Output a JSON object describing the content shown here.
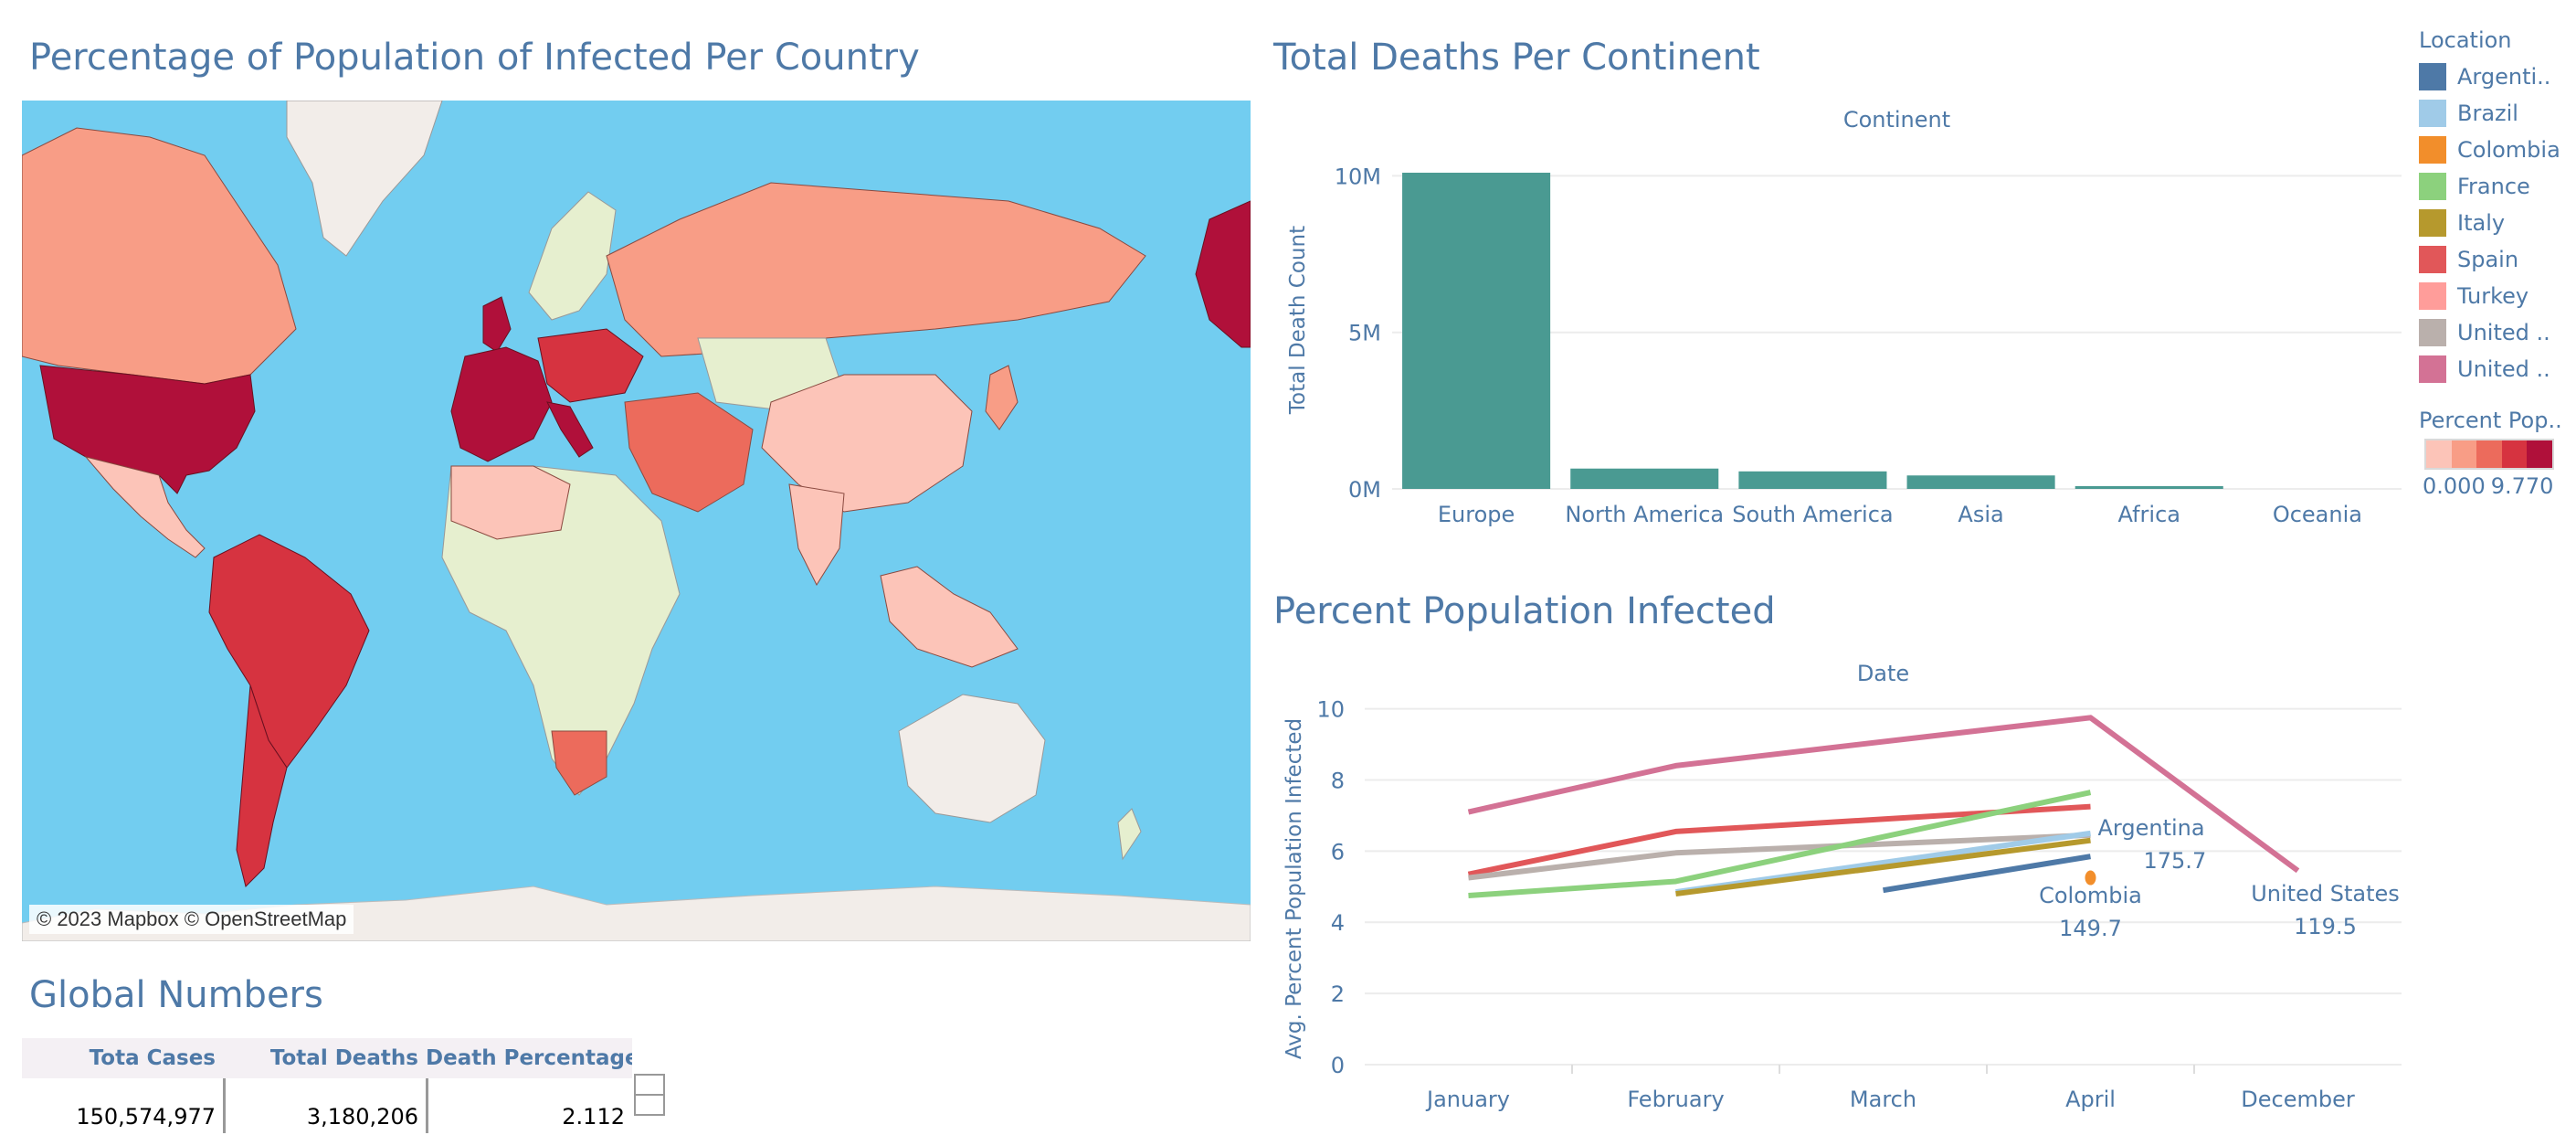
{
  "map": {
    "title": "Percentage of Population of Infected Per Country",
    "credit": "© 2023 Mapbox © OpenStreetMap"
  },
  "global_numbers": {
    "title": "Global Numbers",
    "headers": [
      "Tota Cases",
      "Total Deaths",
      "Death Percentage"
    ],
    "values": [
      "150,574,977",
      "3,180,206",
      "2.112"
    ]
  },
  "legend": {
    "title": "Location",
    "items": [
      {
        "label": "Argenti..",
        "color": "#4e79a7"
      },
      {
        "label": "Brazil",
        "color": "#a0cbe8"
      },
      {
        "label": "Colombia",
        "color": "#f28e2b"
      },
      {
        "label": "France",
        "color": "#8cd17d"
      },
      {
        "label": "Italy",
        "color": "#b6992d"
      },
      {
        "label": "Spain",
        "color": "#e15759"
      },
      {
        "label": "Turkey",
        "color": "#ff9d9a"
      },
      {
        "label": "United ..",
        "color": "#bab0ac"
      },
      {
        "label": "United ..",
        "color": "#d37295"
      }
    ],
    "percent_title": "Percent Pop..",
    "percent_min": "0.000",
    "percent_max": "9.770",
    "percent_colors": [
      "#fcc4b8",
      "#f89d86",
      "#ec6b5c",
      "#d63340",
      "#b0103a"
    ]
  },
  "chart_data": [
    {
      "type": "bar",
      "title": "Total Deaths Per Continent",
      "header": "Continent",
      "ylabel": "Total Death Count",
      "categories": [
        "Europe",
        "North America",
        "South America",
        "Asia",
        "Africa",
        "Oceania"
      ],
      "values": [
        10100000,
        650000,
        560000,
        430000,
        90000,
        0
      ],
      "ylim": [
        0,
        10800000
      ],
      "yticks": [
        0,
        5000000,
        10000000
      ],
      "ytick_labels": [
        "0M",
        "5M",
        "10M"
      ],
      "color": "#4a9a92",
      "grid": true
    },
    {
      "type": "line",
      "title": "Percent Population Infected",
      "header": "Date",
      "ylabel": "Avg. Percent Population Infected",
      "categories": [
        "January",
        "February",
        "March",
        "April",
        "December"
      ],
      "ylim": [
        0,
        10.4
      ],
      "yticks": [
        0,
        2,
        4,
        6,
        8,
        10
      ],
      "grid": true,
      "series": [
        {
          "color": "#d37295",
          "points": [
            [
              0,
              7.1
            ],
            [
              1,
              8.4
            ],
            [
              3,
              9.75
            ],
            [
              4,
              5.45
            ]
          ]
        },
        {
          "color": "#e15759",
          "points": [
            [
              0,
              5.35
            ],
            [
              1,
              6.55
            ],
            [
              3,
              7.25
            ]
          ]
        },
        {
          "color": "#bab0ac",
          "points": [
            [
              0,
              5.25
            ],
            [
              1,
              5.95
            ],
            [
              3,
              6.45
            ]
          ]
        },
        {
          "color": "#8cd17d",
          "points": [
            [
              0,
              4.75
            ],
            [
              1,
              5.15
            ],
            [
              3,
              7.65
            ]
          ]
        },
        {
          "color": "#a0cbe8",
          "points": [
            [
              1,
              4.85
            ],
            [
              3,
              6.5
            ]
          ]
        },
        {
          "color": "#b6992d",
          "points": [
            [
              1,
              4.8
            ],
            [
              3,
              6.3
            ]
          ]
        },
        {
          "color": "#4e79a7",
          "points": [
            [
              2,
              4.9
            ],
            [
              3,
              5.85
            ]
          ]
        },
        {
          "color": "#f28e2b",
          "points": [
            [
              3,
              5.25
            ]
          ]
        }
      ],
      "annotations": [
        {
          "text": "Argentina",
          "value": "175.7"
        },
        {
          "text": "Colombia",
          "value": "149.7"
        },
        {
          "text": "United States",
          "value": "119.5"
        }
      ]
    }
  ]
}
